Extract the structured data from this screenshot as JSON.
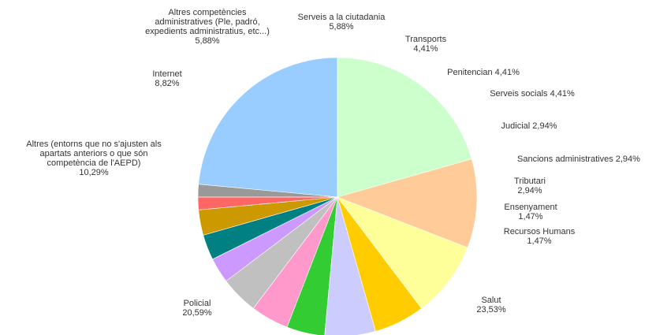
{
  "chart_data": {
    "type": "pie",
    "title": "",
    "start_angle_deg": 90,
    "direction": "counterclockwise",
    "unit": "%",
    "slices": [
      {
        "label": "Salut",
        "value_text": "23,53%",
        "value": 23.53,
        "color": "#99ccff"
      },
      {
        "label": "Recursos Humans",
        "value_text": "1,47%",
        "value": 1.47,
        "color": "#999999"
      },
      {
        "label": "Ensenyament",
        "value_text": "1,47%",
        "value": 1.47,
        "color": "#ff6666"
      },
      {
        "label": "Tributari",
        "value_text": "2,94%",
        "value": 2.94,
        "color": "#cc9900"
      },
      {
        "label": "Sancions administratives",
        "value_text": "2,94%",
        "value": 2.94,
        "color": "#008080"
      },
      {
        "label": "Judicial",
        "value_text": "2,94%",
        "value": 2.94,
        "color": "#cc99ff"
      },
      {
        "label": "Serveis socials",
        "value_text": "4,41%",
        "value": 4.41,
        "color": "#c0c0c0"
      },
      {
        "label": "Penitencian",
        "value_text": "4,41%",
        "value": 4.41,
        "color": "#ff99cc"
      },
      {
        "label": "Transports",
        "value_text": "4,41%",
        "value": 4.41,
        "color": "#33cc33"
      },
      {
        "label": "Serveis a la ciutadania",
        "value_text": "5,88%",
        "value": 5.88,
        "color": "#ccccff"
      },
      {
        "label": "Altres competències administratives (Ple, padró, expedients administratius, etc...)",
        "value_text": "5,88%",
        "value": 5.88,
        "color": "#ffcc00"
      },
      {
        "label": "Internet",
        "value_text": "8,82%",
        "value": 8.82,
        "color": "#ffff99"
      },
      {
        "label": "Altres (entorns que no s'ajusten als apartats anteriors o que són competència de l'AEPD)",
        "value_text": "10,29%",
        "value": 10.29,
        "color": "#ffcc99"
      },
      {
        "label": "Policial",
        "value_text": "20,59%",
        "value": 20.59,
        "color": "#ccffcc"
      }
    ],
    "labels": [
      {
        "lines": [
          "Salut",
          "23,53%"
        ]
      },
      {
        "lines": [
          "Recursos Humans",
          "1,47%"
        ]
      },
      {
        "lines": [
          "Ensenyament",
          "1,47%"
        ]
      },
      {
        "lines": [
          "Tributari",
          "2,94%"
        ]
      },
      {
        "lines": [
          "Sancions administratives 2,94%"
        ]
      },
      {
        "lines": [
          "Judicial 2,94%"
        ]
      },
      {
        "lines": [
          "Serveis socials 4,41%"
        ]
      },
      {
        "lines": [
          "Penitencian 4,41%"
        ]
      },
      {
        "lines": [
          "Transports",
          "4,41%"
        ]
      },
      {
        "lines": [
          "Serveis a la ciutadania",
          "5,88%"
        ]
      },
      {
        "lines": [
          "Altres competències",
          "administratives (Ple, padró,",
          "expedients administratius, etc...)",
          "5,88%"
        ]
      },
      {
        "lines": [
          "Internet",
          "8,82%"
        ]
      },
      {
        "lines": [
          "Altres (entorns que no s'ajusten als",
          "apartats anteriors o que són",
          "competència de l'AEPD)",
          "10,29%"
        ]
      },
      {
        "lines": [
          "Policial",
          "20,59%"
        ]
      }
    ],
    "legend": "none"
  }
}
